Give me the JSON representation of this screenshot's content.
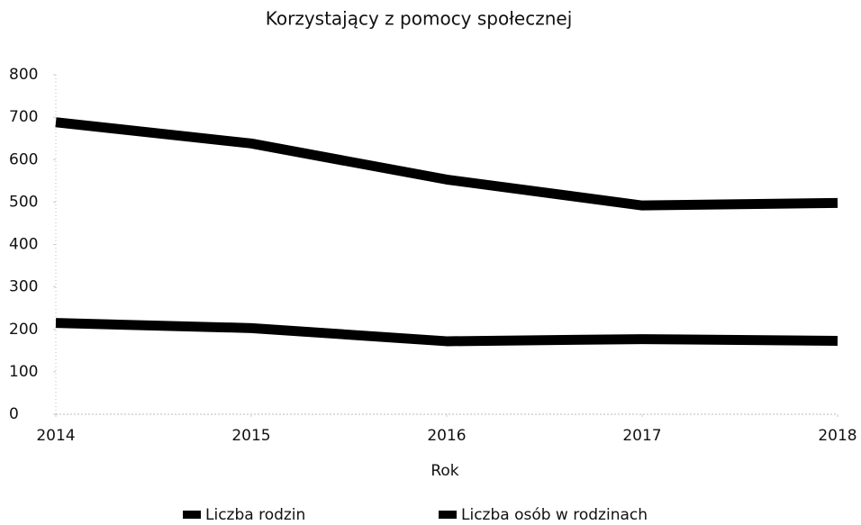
{
  "chart_data": {
    "type": "line",
    "title": "Korzystający z pomocy społecznej",
    "x_label": "Rok",
    "x": [
      2014,
      2015,
      2016,
      2017,
      2018
    ],
    "xlim": [
      2014,
      2018
    ],
    "xticks": [
      2014,
      2015,
      2016,
      2017,
      2018
    ],
    "ylim": [
      0,
      800
    ],
    "yticks": [
      0,
      100,
      200,
      300,
      400,
      500,
      600,
      700,
      800
    ],
    "grid": false,
    "legend": "bottom",
    "series": [
      {
        "name": "Liczba rodzin",
        "color": "#000000",
        "values": [
          215,
          203,
          172,
          177,
          173
        ]
      },
      {
        "name": "Liczba osób w rodzinach",
        "color": "#000000",
        "values": [
          688,
          638,
          553,
          492,
          498
        ]
      }
    ]
  }
}
